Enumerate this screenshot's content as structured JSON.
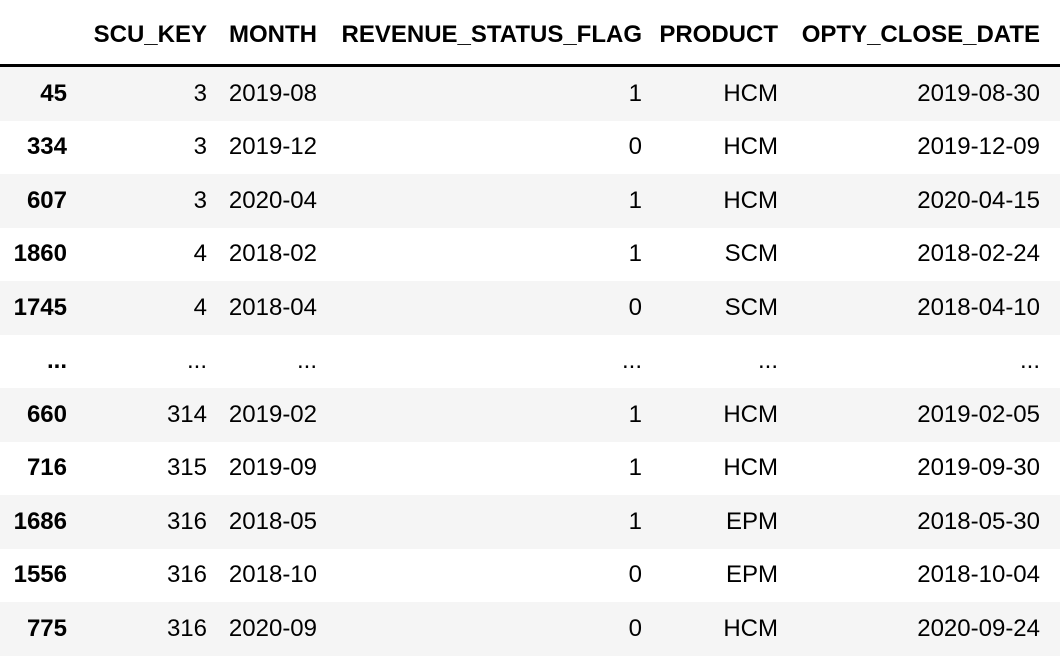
{
  "app": {
    "view": "dataframe-output"
  },
  "colors": {
    "background": "#ffffff",
    "stripe": "#f5f5f5",
    "text": "#000000",
    "header_rule": "#000000"
  },
  "table": {
    "index_header": "",
    "columns": [
      "SCU_KEY",
      "MONTH",
      "REVENUE_STATUS_FLAG",
      "PRODUCT",
      "OPTY_CLOSE_DATE"
    ],
    "rows": [
      {
        "index": "45",
        "cells": [
          "3",
          "2019-08",
          "1",
          "HCM",
          "2019-08-30"
        ]
      },
      {
        "index": "334",
        "cells": [
          "3",
          "2019-12",
          "0",
          "HCM",
          "2019-12-09"
        ]
      },
      {
        "index": "607",
        "cells": [
          "3",
          "2020-04",
          "1",
          "HCM",
          "2020-04-15"
        ]
      },
      {
        "index": "1860",
        "cells": [
          "4",
          "2018-02",
          "1",
          "SCM",
          "2018-02-24"
        ]
      },
      {
        "index": "1745",
        "cells": [
          "4",
          "2018-04",
          "0",
          "SCM",
          "2018-04-10"
        ]
      },
      {
        "index": "...",
        "cells": [
          "...",
          "...",
          "...",
          "...",
          "..."
        ]
      },
      {
        "index": "660",
        "cells": [
          "314",
          "2019-02",
          "1",
          "HCM",
          "2019-02-05"
        ]
      },
      {
        "index": "716",
        "cells": [
          "315",
          "2019-09",
          "1",
          "HCM",
          "2019-09-30"
        ]
      },
      {
        "index": "1686",
        "cells": [
          "316",
          "2018-05",
          "1",
          "EPM",
          "2018-05-30"
        ]
      },
      {
        "index": "1556",
        "cells": [
          "316",
          "2018-10",
          "0",
          "EPM",
          "2018-10-04"
        ]
      },
      {
        "index": "775",
        "cells": [
          "316",
          "2020-09",
          "0",
          "HCM",
          "2020-09-24"
        ]
      }
    ]
  }
}
